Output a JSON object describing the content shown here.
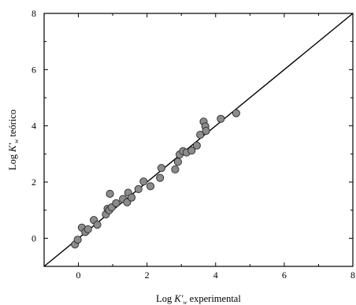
{
  "chart_data": {
    "type": "scatter",
    "xlabel": {
      "prefix": "Log ",
      "italic": "K'",
      "sub": "w",
      "suffix": " experimental"
    },
    "ylabel": {
      "prefix": "Log ",
      "italic": "K'",
      "sub": "w",
      "suffix": " teórico"
    },
    "xlim": [
      -1,
      8
    ],
    "ylim": [
      -1,
      8
    ],
    "xticks": [
      0,
      2,
      4,
      6,
      8
    ],
    "yticks": [
      0,
      2,
      4,
      6,
      8
    ],
    "xtick_labels": [
      "0",
      "2",
      "4",
      "6",
      "8"
    ],
    "ytick_labels": [
      "0",
      "2",
      "4",
      "6",
      "8"
    ],
    "grid": false,
    "reference_line": {
      "x": [
        -1,
        8
      ],
      "y": [
        -1,
        8
      ]
    },
    "marker_color": "#8c8c8c",
    "points": [
      {
        "x": -0.1,
        "y": -0.22
      },
      {
        "x": -0.02,
        "y": -0.05
      },
      {
        "x": 0.1,
        "y": 0.38
      },
      {
        "x": 0.2,
        "y": 0.22
      },
      {
        "x": 0.28,
        "y": 0.32
      },
      {
        "x": 0.45,
        "y": 0.65
      },
      {
        "x": 0.55,
        "y": 0.48
      },
      {
        "x": 0.8,
        "y": 0.85
      },
      {
        "x": 0.85,
        "y": 1.05
      },
      {
        "x": 0.9,
        "y": 1.0
      },
      {
        "x": 0.92,
        "y": 1.58
      },
      {
        "x": 0.97,
        "y": 1.1
      },
      {
        "x": 1.1,
        "y": 1.25
      },
      {
        "x": 1.3,
        "y": 1.4
      },
      {
        "x": 1.42,
        "y": 1.28
      },
      {
        "x": 1.45,
        "y": 1.62
      },
      {
        "x": 1.55,
        "y": 1.45
      },
      {
        "x": 1.75,
        "y": 1.75
      },
      {
        "x": 1.9,
        "y": 2.02
      },
      {
        "x": 2.1,
        "y": 1.85
      },
      {
        "x": 2.38,
        "y": 2.15
      },
      {
        "x": 2.42,
        "y": 2.5
      },
      {
        "x": 2.82,
        "y": 2.45
      },
      {
        "x": 2.9,
        "y": 2.72
      },
      {
        "x": 2.95,
        "y": 2.98
      },
      {
        "x": 3.05,
        "y": 3.1
      },
      {
        "x": 3.15,
        "y": 3.05
      },
      {
        "x": 3.3,
        "y": 3.12
      },
      {
        "x": 3.45,
        "y": 3.3
      },
      {
        "x": 3.55,
        "y": 3.68
      },
      {
        "x": 3.65,
        "y": 4.15
      },
      {
        "x": 3.7,
        "y": 3.98
      },
      {
        "x": 3.72,
        "y": 3.82
      },
      {
        "x": 4.15,
        "y": 4.25
      },
      {
        "x": 4.6,
        "y": 4.45
      }
    ]
  }
}
